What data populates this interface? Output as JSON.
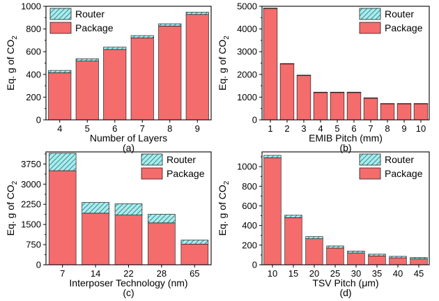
{
  "colors": {
    "package": "#f46c6c",
    "router": "#a8ecec",
    "router_hatch": "#2a7f86",
    "frame": "#000000"
  },
  "chart_data": [
    {
      "id": "a",
      "type": "bar",
      "stacked": true,
      "caption": "(a)",
      "xlabel": "Number of Layers",
      "ylabel": "Eq. g of CO",
      "ylabel_subscript": "2",
      "categories": [
        "4",
        "5",
        "6",
        "7",
        "8",
        "9"
      ],
      "series": [
        {
          "name": "Package",
          "values": [
            415,
            518,
            620,
            722,
            826,
            928
          ]
        },
        {
          "name": "Router",
          "values": [
            20,
            20,
            20,
            20,
            20,
            20
          ]
        }
      ],
      "ylim": [
        0,
        1000
      ],
      "yticks": [
        0,
        200,
        400,
        600,
        800,
        1000
      ],
      "ytick_labels": [
        "0",
        "200",
        "400",
        "600",
        "800",
        "1000"
      ],
      "legend": "top-left",
      "grid": false
    },
    {
      "id": "b",
      "type": "bar",
      "stacked": true,
      "caption": "(b)",
      "xlabel": "EMIB Pitch (mm)",
      "ylabel": "Eq. g of CO",
      "ylabel_subscript": "2",
      "categories": [
        "1",
        "2",
        "3",
        "4",
        "5",
        "6",
        "7",
        "8",
        "9",
        "10"
      ],
      "series": [
        {
          "name": "Package",
          "values": [
            4900,
            2460,
            1950,
            1200,
            1200,
            1200,
            950,
            700,
            700,
            700
          ]
        },
        {
          "name": "Router",
          "values": [
            20,
            20,
            20,
            20,
            20,
            20,
            20,
            20,
            20,
            20
          ]
        }
      ],
      "ylim": [
        0,
        5000
      ],
      "yticks": [
        0,
        1000,
        2000,
        3000,
        4000,
        5000
      ],
      "ytick_labels": [
        "0",
        "1000",
        "2000",
        "3000",
        "4000",
        "5000"
      ],
      "legend": "top-right",
      "grid": false
    },
    {
      "id": "c",
      "type": "bar",
      "stacked": true,
      "caption": "(c)",
      "xlabel": "Interposer Technology (nm)",
      "ylabel": "Eq. g of CO",
      "ylabel_subscript": "2",
      "categories": [
        "7",
        "14",
        "22",
        "28",
        "65"
      ],
      "series": [
        {
          "name": "Package",
          "values": [
            3500,
            1920,
            1850,
            1560,
            770
          ]
        },
        {
          "name": "Router",
          "values": [
            650,
            400,
            420,
            320,
            150
          ]
        }
      ],
      "ylim": [
        0,
        4200
      ],
      "yticks": [
        0,
        750,
        1500,
        2250,
        3000,
        3750
      ],
      "ytick_labels": [
        "0",
        "750",
        "1500",
        "2250",
        "3000",
        "3750"
      ],
      "legend": "top-right",
      "grid": false
    },
    {
      "id": "d",
      "type": "bar",
      "stacked": true,
      "caption": "(d)",
      "xlabel": "TSV Pitch (μm)",
      "ylabel": "Eq. g of CO",
      "ylabel_subscript": "2",
      "categories": [
        "10",
        "15",
        "20",
        "25",
        "30",
        "35",
        "40",
        "45"
      ],
      "series": [
        {
          "name": "Package",
          "values": [
            1090,
            480,
            265,
            170,
            120,
            90,
            70,
            60
          ]
        },
        {
          "name": "Router",
          "values": [
            25,
            25,
            22,
            22,
            20,
            18,
            16,
            14
          ]
        }
      ],
      "ylim": [
        0,
        1150
      ],
      "yticks": [
        0,
        200,
        400,
        600,
        800,
        1000
      ],
      "ytick_labels": [
        "0",
        "200",
        "400",
        "600",
        "800",
        "1000"
      ],
      "legend": "top-right",
      "grid": false
    }
  ]
}
